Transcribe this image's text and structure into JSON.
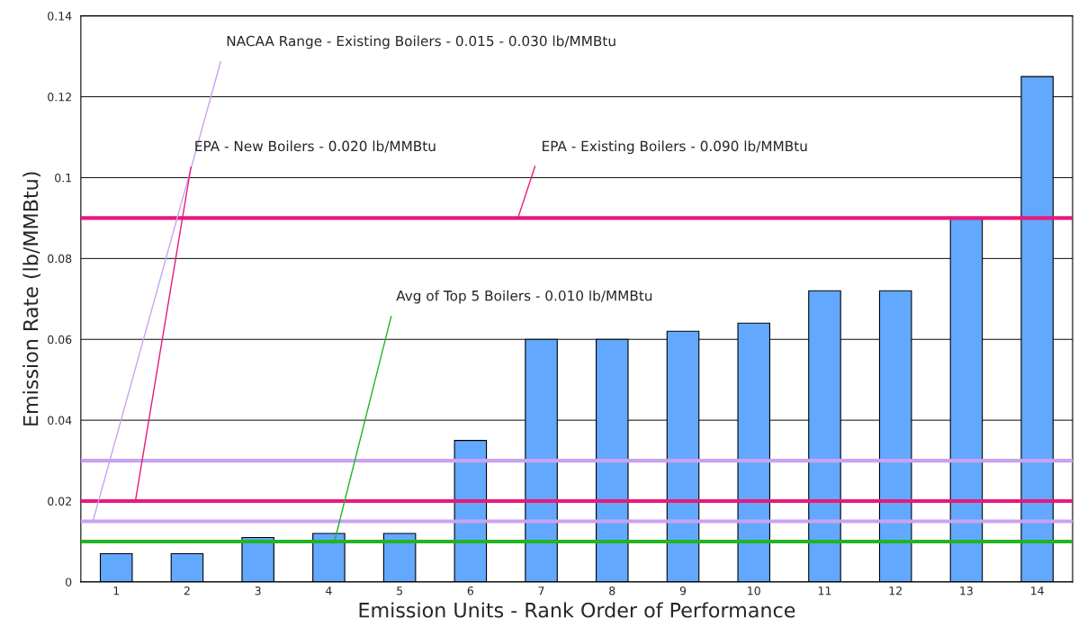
{
  "chart_data": {
    "type": "bar",
    "xlabel": "Emission Units - Rank Order of Performance",
    "ylabel": "Emission Rate (lb/MMBtu)",
    "categories": [
      "1",
      "2",
      "3",
      "4",
      "5",
      "6",
      "7",
      "8",
      "9",
      "10",
      "11",
      "12",
      "13",
      "14"
    ],
    "values": [
      0.007,
      0.007,
      0.011,
      0.012,
      0.012,
      0.035,
      0.06,
      0.06,
      0.062,
      0.064,
      0.072,
      0.072,
      0.09,
      0.125
    ],
    "color": "#62a8ff",
    "ylim": [
      0,
      0.14
    ],
    "yticks": [
      0,
      0.02,
      0.04,
      0.06,
      0.08,
      0.1,
      0.12,
      0.14
    ],
    "grid": "y",
    "ref_lines": [
      {
        "axis": "y",
        "value": 0.03,
        "label": null,
        "color": "#c9a3f2"
      },
      {
        "axis": "y",
        "value": 0.015,
        "label": "NACAA Range - Existing Boilers - 0.015 - 0.030 lb/MMBtu",
        "color": "#c9a3f2"
      },
      {
        "axis": "y",
        "value": 0.02,
        "label": "EPA - New Boilers - 0.020 lb/MMBtu",
        "color": "#e8197c"
      },
      {
        "axis": "y",
        "value": 0.09,
        "label": "EPA - Existing Boilers - 0.090 lb/MMBtu",
        "color": "#e8197c"
      },
      {
        "axis": "y",
        "value": 0.01,
        "label": "Avg of Top 5 Boilers - 0.010 lb/MMBtu",
        "color": "#22b422"
      }
    ]
  }
}
